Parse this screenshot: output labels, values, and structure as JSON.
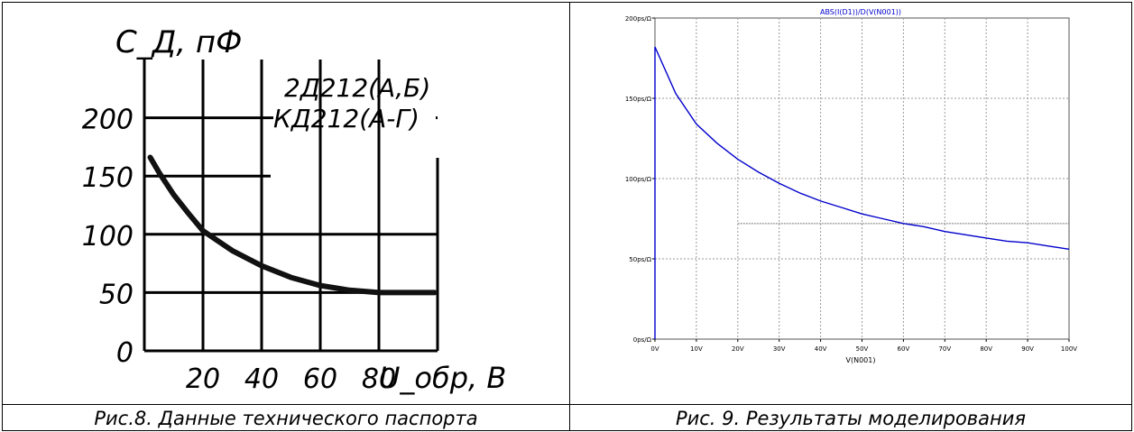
{
  "captions": {
    "left": "Рис.8. Данные технического паспорта",
    "right": "Рис. 9. Результаты моделирования"
  },
  "colors": {
    "plot_line": "#0000cc",
    "datasheet_curve": "#111111",
    "grid_right": "#9a9a9a"
  },
  "chart_data": [
    {
      "type": "line",
      "title": "",
      "ylabel": "C_Д, пФ",
      "xlabel": "U_обр, В",
      "legend": [
        "2Д212(А,Б)",
        "КД212(А-Г)"
      ],
      "x_ticks": [
        "20",
        "40",
        "60",
        "80"
      ],
      "y_ticks": [
        "0",
        "50",
        "100",
        "150",
        "200"
      ],
      "xlim": [
        0,
        100
      ],
      "ylim": [
        0,
        250
      ],
      "grid": true,
      "series": [
        {
          "x": [
            2,
            5,
            10,
            15,
            20,
            30,
            40,
            50,
            60,
            70,
            80,
            90,
            99
          ],
          "values": [
            166,
            153,
            134,
            118,
            103,
            86,
            73,
            63,
            56,
            52,
            50,
            50,
            50
          ]
        }
      ]
    },
    {
      "type": "line",
      "title": "ABS(I(D1))/D(V(N001))",
      "xlabel": "V(N001)",
      "ylabel": "",
      "x_ticks": [
        "0V",
        "10V",
        "20V",
        "30V",
        "40V",
        "50V",
        "60V",
        "70V",
        "80V",
        "90V",
        "100V"
      ],
      "y_ticks": [
        "0ps/Ω",
        "50ps/Ω",
        "100ps/Ω",
        "150ps/Ω",
        "200ps/Ω"
      ],
      "xlim": [
        0,
        100
      ],
      "ylim": [
        0,
        200
      ],
      "grid": true,
      "series": [
        {
          "x": [
            0,
            5,
            10,
            15,
            20,
            25,
            30,
            35,
            40,
            45,
            50,
            55,
            60,
            65,
            70,
            75,
            80,
            85,
            90,
            95,
            100
          ],
          "values": [
            182,
            153,
            134,
            122,
            112,
            104,
            97,
            91,
            86,
            82,
            78,
            75,
            72,
            70,
            67,
            65,
            63,
            61,
            60,
            58,
            56
          ]
        }
      ]
    }
  ]
}
